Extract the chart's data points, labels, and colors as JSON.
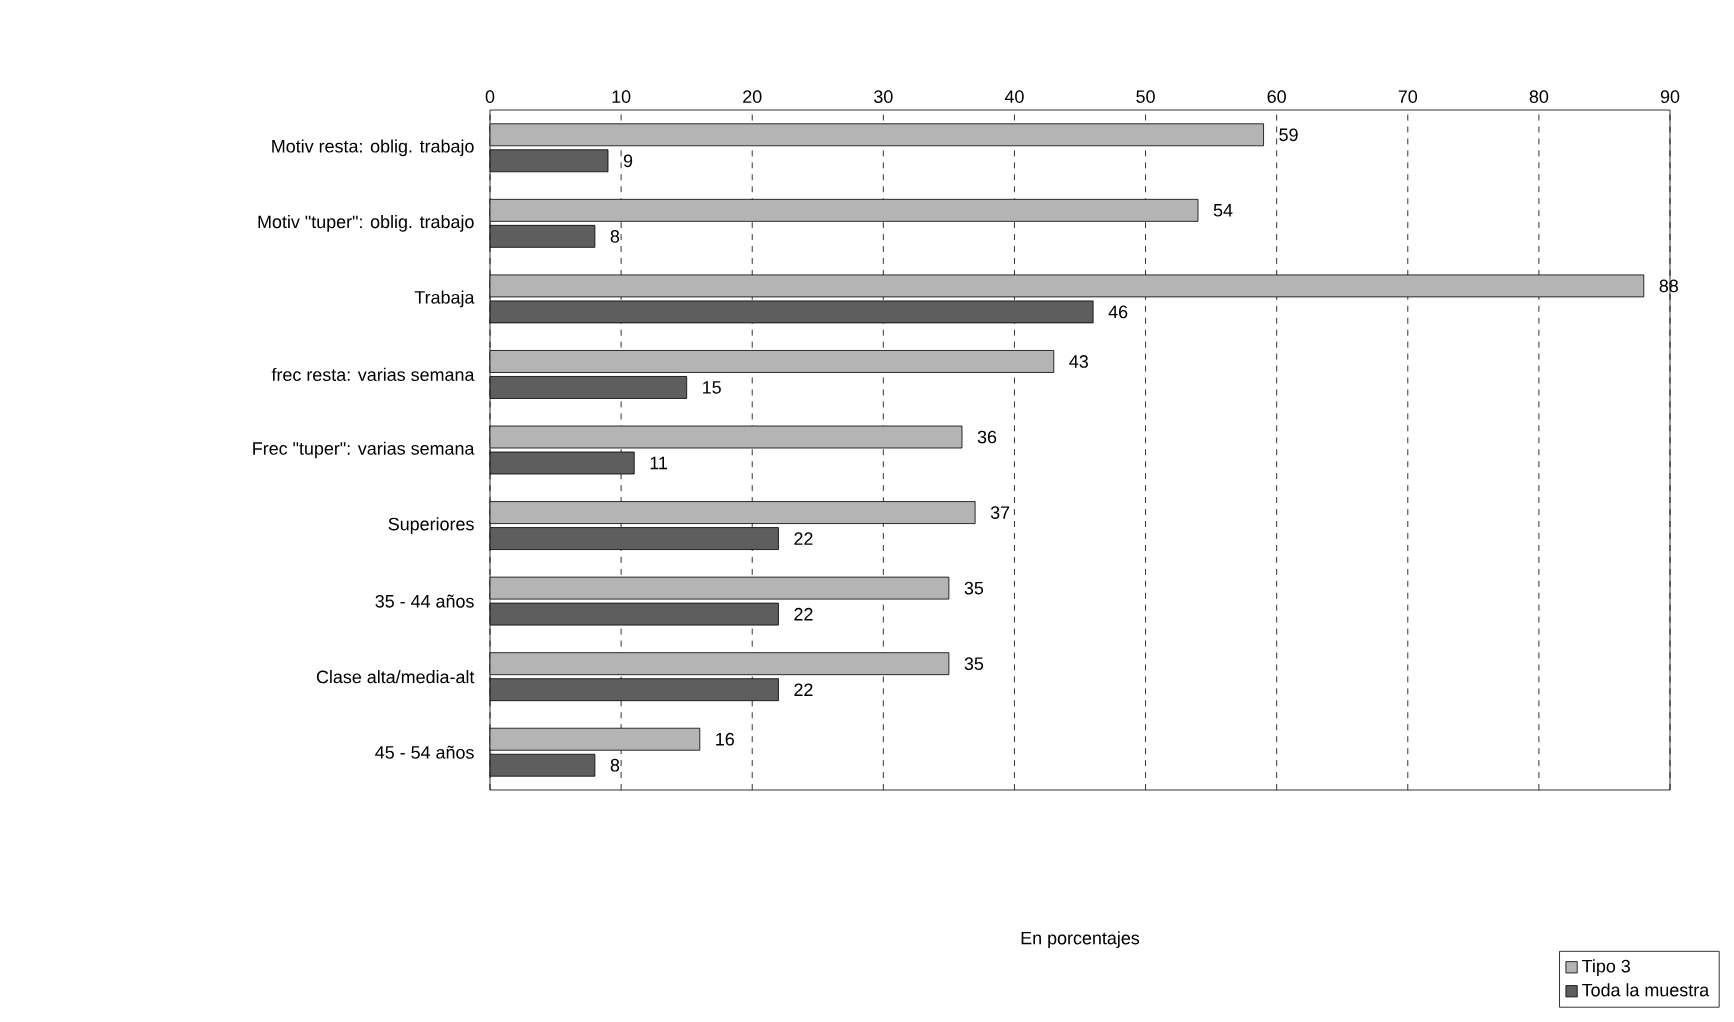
{
  "chart_data": {
    "type": "bar",
    "orientation": "horizontal",
    "annotations": [
      "En porcentajes"
    ],
    "categories": [
      "Motiv resta: oblig. trabajo",
      "Motiv \"tuper\": oblig. trabajo",
      "Trabaja",
      "frec resta: varias semana",
      "Frec \"tuper\": varias semana",
      "Superiores",
      "35 - 44 años",
      "Clase alta/media-alt",
      "45 - 54 años"
    ],
    "series": [
      {
        "name": "Tipo 3",
        "color": "#b4b4b4",
        "values": [
          59,
          54,
          88,
          43,
          36,
          37,
          35,
          35,
          16
        ]
      },
      {
        "name": "Toda la muestra",
        "color": "#5e5e5e",
        "values": [
          9,
          8,
          46,
          15,
          11,
          22,
          22,
          22,
          8
        ]
      }
    ],
    "xlim": [
      0,
      90
    ],
    "xticks": [
      0,
      10,
      20,
      30,
      40,
      50,
      60,
      70,
      80,
      90
    ],
    "grid": "x",
    "legend": "bottom right",
    "data_labels": true
  }
}
